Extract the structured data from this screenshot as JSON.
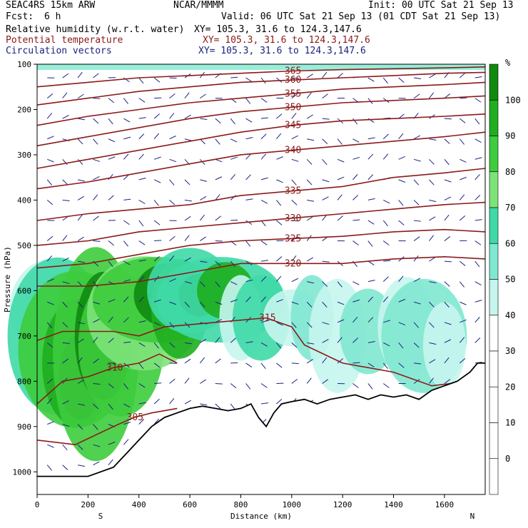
{
  "header": {
    "model": "SEAC4RS 15km ARW",
    "org": "NCAR/MMMM",
    "init": "Init: 00 UTC Sat 21 Sep 13",
    "fcst_label": "Fcst:",
    "fcst_value": "6 h",
    "valid": "Valid: 06 UTC Sat 21 Sep 13 (01 CDT Sat 21 Sep 13)",
    "line_rh": "Relative humidity (w.r.t. water)",
    "line_theta": "Potential temperature",
    "line_vec": "Circulation vectors",
    "xy_rh": "XY= 105.3, 31.6 to 124.3,147.6",
    "xy_theta": "XY= 105.3, 31.6 to 124.3,147.6",
    "xy_vec": "XY= 105.3, 31.6 to 124.3,147.6"
  },
  "colors": {
    "theta_contour": "#8b1a1a",
    "vectors": "#1a237e",
    "terrain": "#000000",
    "rh_levels": [
      "#ffffff",
      "#ffffff",
      "#ffffff",
      "#ffffff",
      "#ffffff",
      "#c6f5ee",
      "#7fe8cf",
      "#3fd9a7",
      "#7ee27a",
      "#3dcc3d",
      "#1fae1f",
      "#0f8a0f",
      "#0b6e0b"
    ]
  },
  "chart_data": {
    "type": "heatmap",
    "title": "",
    "xlabel": "Distance (km)",
    "ylabel": "Pressure (hPa)",
    "xlim": [
      0,
      1760
    ],
    "ylim": [
      1050,
      100
    ],
    "x_ticks": [
      0,
      200,
      400,
      600,
      800,
      1000,
      1200,
      1400,
      1600
    ],
    "y_ticks": [
      100,
      200,
      300,
      400,
      500,
      600,
      700,
      800,
      900,
      1000
    ],
    "x_end_labels": {
      "left": "S",
      "right": "N"
    },
    "colorbar": {
      "unit": "%",
      "levels": [
        -10,
        0,
        10,
        20,
        30,
        40,
        50,
        60,
        70,
        80,
        90,
        100,
        110
      ],
      "tick_labels": [
        "0",
        "10",
        "20",
        "30",
        "40",
        "50",
        "60",
        "70",
        "80",
        "90",
        "100"
      ]
    },
    "theta_contours": [
      {
        "value": 305,
        "label": "305",
        "points": [
          [
            0,
            930
          ],
          [
            150,
            940
          ],
          [
            300,
            900
          ],
          [
            380,
            880
          ],
          [
            450,
            870
          ],
          [
            550,
            860
          ]
        ]
      },
      {
        "value": 310,
        "label": "310",
        "points": [
          [
            0,
            850
          ],
          [
            100,
            800
          ],
          [
            200,
            790
          ],
          [
            300,
            770
          ],
          [
            400,
            760
          ],
          [
            480,
            740
          ],
          [
            550,
            760
          ]
        ]
      },
      {
        "value": 315,
        "label": "315",
        "points": [
          [
            0,
            710
          ],
          [
            100,
            690
          ],
          [
            200,
            690
          ],
          [
            300,
            690
          ],
          [
            400,
            700
          ],
          [
            500,
            680
          ],
          [
            700,
            670
          ],
          [
            900,
            660
          ],
          [
            1000,
            680
          ],
          [
            1050,
            720
          ],
          [
            1200,
            760
          ],
          [
            1400,
            780
          ],
          [
            1550,
            810
          ],
          [
            1700,
            800
          ]
        ]
      },
      {
        "value": 320,
        "label": "320",
        "points": [
          [
            0,
            590
          ],
          [
            200,
            590
          ],
          [
            400,
            580
          ],
          [
            600,
            560
          ],
          [
            800,
            540
          ],
          [
            1000,
            540
          ],
          [
            1200,
            540
          ],
          [
            1400,
            530
          ],
          [
            1600,
            525
          ],
          [
            1760,
            530
          ]
        ]
      },
      {
        "value": 325,
        "label": "325",
        "points": [
          [
            0,
            550
          ],
          [
            200,
            540
          ],
          [
            400,
            520
          ],
          [
            600,
            500
          ],
          [
            800,
            490
          ],
          [
            1000,
            485
          ],
          [
            1200,
            480
          ],
          [
            1400,
            470
          ],
          [
            1600,
            465
          ],
          [
            1760,
            470
          ]
        ]
      },
      {
        "value": 330,
        "label": "330",
        "points": [
          [
            0,
            500
          ],
          [
            200,
            490
          ],
          [
            400,
            470
          ],
          [
            600,
            460
          ],
          [
            800,
            450
          ],
          [
            1000,
            440
          ],
          [
            1200,
            430
          ],
          [
            1400,
            420
          ],
          [
            1600,
            410
          ],
          [
            1760,
            405
          ]
        ]
      },
      {
        "value": 335,
        "label": "335",
        "points": [
          [
            0,
            445
          ],
          [
            200,
            430
          ],
          [
            400,
            420
          ],
          [
            600,
            410
          ],
          [
            800,
            390
          ],
          [
            1000,
            380
          ],
          [
            1200,
            370
          ],
          [
            1400,
            350
          ],
          [
            1600,
            340
          ],
          [
            1760,
            330
          ]
        ]
      },
      {
        "value": 340,
        "label": "340",
        "points": [
          [
            0,
            375
          ],
          [
            200,
            360
          ],
          [
            400,
            340
          ],
          [
            600,
            320
          ],
          [
            800,
            300
          ],
          [
            1000,
            290
          ],
          [
            1200,
            280
          ],
          [
            1400,
            270
          ],
          [
            1600,
            260
          ],
          [
            1760,
            250
          ]
        ]
      },
      {
        "value": 345,
        "label": "345",
        "points": [
          [
            0,
            330
          ],
          [
            200,
            310
          ],
          [
            400,
            290
          ],
          [
            600,
            270
          ],
          [
            800,
            250
          ],
          [
            1000,
            235
          ],
          [
            1200,
            225
          ],
          [
            1400,
            220
          ],
          [
            1600,
            215
          ],
          [
            1760,
            210
          ]
        ]
      },
      {
        "value": 350,
        "label": "350",
        "points": [
          [
            0,
            280
          ],
          [
            200,
            260
          ],
          [
            400,
            240
          ],
          [
            600,
            220
          ],
          [
            800,
            205
          ],
          [
            1000,
            195
          ],
          [
            1200,
            185
          ],
          [
            1400,
            180
          ],
          [
            1600,
            175
          ],
          [
            1760,
            170
          ]
        ]
      },
      {
        "value": 355,
        "label": "355",
        "points": [
          [
            0,
            235
          ],
          [
            200,
            215
          ],
          [
            400,
            200
          ],
          [
            600,
            185
          ],
          [
            800,
            175
          ],
          [
            1000,
            165
          ],
          [
            1200,
            155
          ],
          [
            1400,
            150
          ],
          [
            1600,
            145
          ],
          [
            1760,
            140
          ]
        ]
      },
      {
        "value": 360,
        "label": "360",
        "points": [
          [
            0,
            190
          ],
          [
            200,
            175
          ],
          [
            400,
            160
          ],
          [
            600,
            150
          ],
          [
            800,
            140
          ],
          [
            1000,
            135
          ],
          [
            1200,
            130
          ],
          [
            1400,
            125
          ],
          [
            1600,
            120
          ],
          [
            1760,
            118
          ]
        ]
      },
      {
        "value": 365,
        "label": "365",
        "points": [
          [
            0,
            150
          ],
          [
            200,
            140
          ],
          [
            400,
            130
          ],
          [
            600,
            125
          ],
          [
            800,
            120
          ],
          [
            1000,
            115
          ],
          [
            1200,
            112
          ],
          [
            1400,
            110
          ],
          [
            1600,
            108
          ],
          [
            1760,
            106
          ]
        ]
      }
    ],
    "terrain_surface": [
      [
        0,
        1010
      ],
      [
        100,
        1010
      ],
      [
        200,
        1010
      ],
      [
        300,
        990
      ],
      [
        350,
        960
      ],
      [
        400,
        930
      ],
      [
        450,
        900
      ],
      [
        500,
        880
      ],
      [
        550,
        870
      ],
      [
        600,
        860
      ],
      [
        650,
        855
      ],
      [
        700,
        860
      ],
      [
        750,
        865
      ],
      [
        800,
        860
      ],
      [
        840,
        850
      ],
      [
        870,
        880
      ],
      [
        900,
        900
      ],
      [
        930,
        870
      ],
      [
        960,
        850
      ],
      [
        1000,
        845
      ],
      [
        1050,
        840
      ],
      [
        1100,
        850
      ],
      [
        1150,
        840
      ],
      [
        1200,
        835
      ],
      [
        1250,
        830
      ],
      [
        1300,
        840
      ],
      [
        1350,
        830
      ],
      [
        1400,
        835
      ],
      [
        1450,
        830
      ],
      [
        1500,
        840
      ],
      [
        1550,
        820
      ],
      [
        1600,
        810
      ],
      [
        1650,
        800
      ],
      [
        1700,
        780
      ],
      [
        1730,
        760
      ],
      [
        1760,
        760
      ]
    ]
  }
}
